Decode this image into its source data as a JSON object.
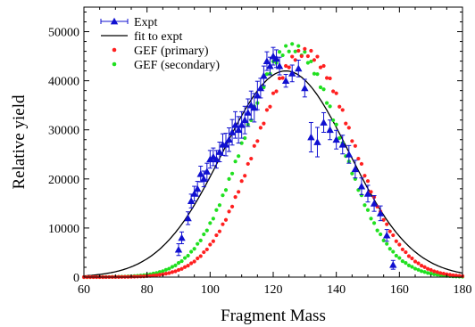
{
  "chart_data": {
    "type": "scatter",
    "title": "",
    "xlabel": "Fragment Mass",
    "ylabel": "Relative yield",
    "xlim": [
      60,
      180
    ],
    "ylim": [
      0,
      55000
    ],
    "x_ticks": [
      60,
      80,
      100,
      120,
      140,
      160,
      180
    ],
    "y_ticks": [
      0,
      10000,
      20000,
      30000,
      40000,
      50000
    ],
    "grid": false,
    "legend_position": "top-left",
    "series": [
      {
        "name": "Expt",
        "kind": "errorbar",
        "color": "#1010d0",
        "x": [
          90,
          91,
          93,
          94,
          95,
          96,
          97,
          98,
          99,
          100,
          101,
          102,
          103,
          104,
          105,
          106,
          107,
          108,
          109,
          110,
          111,
          112,
          113,
          114,
          115,
          116,
          117,
          118,
          119,
          120,
          121,
          122,
          124,
          126,
          128,
          130,
          132,
          134,
          136,
          138,
          140,
          142,
          144,
          146,
          148,
          150,
          152,
          154,
          156,
          158
        ],
        "y": [
          5600,
          8000,
          12000,
          15500,
          17000,
          18000,
          21000,
          20000,
          21500,
          24000,
          24500,
          24000,
          25500,
          27000,
          27000,
          28000,
          29500,
          31000,
          30000,
          31000,
          32000,
          33500,
          35000,
          34500,
          37000,
          38500,
          41000,
          44000,
          43000,
          45000,
          44500,
          43000,
          40000,
          41500,
          42500,
          38500,
          28500,
          27500,
          31500,
          30000,
          28000,
          27000,
          25000,
          22000,
          18500,
          17000,
          15000,
          13000,
          8500,
          2500
        ],
        "err": [
          1200,
          1200,
          1300,
          1400,
          1500,
          1500,
          1600,
          1600,
          1700,
          1800,
          1800,
          1800,
          2000,
          2200,
          2300,
          2400,
          2600,
          2700,
          2700,
          2700,
          2800,
          2800,
          2900,
          2900,
          2900,
          2000,
          2000,
          1900,
          1800,
          1800,
          1800,
          1800,
          1300,
          1700,
          1700,
          1800,
          3000,
          3000,
          2000,
          2000,
          1900,
          1900,
          1800,
          1800,
          1700,
          1700,
          1600,
          1500,
          1200,
          900
        ]
      },
      {
        "name": "fit to expt",
        "kind": "line",
        "color": "#000000",
        "gaussian": {
          "amplitude": 42000,
          "mean": 124,
          "sigma": 20
        }
      },
      {
        "name": "GEF (primary)",
        "kind": "points",
        "color": "#ff2020",
        "gaussian": {
          "amplitude": 46500,
          "mean": 130,
          "sigma": 15.2
        }
      },
      {
        "name": "GEF (secondary)",
        "kind": "points",
        "color": "#20e020",
        "gaussian": {
          "amplitude": 47500,
          "mean": 126,
          "sigma": 15.2
        }
      }
    ]
  }
}
